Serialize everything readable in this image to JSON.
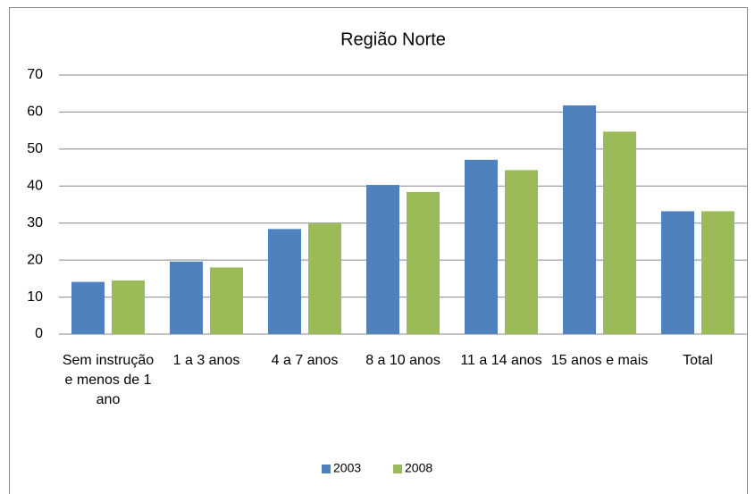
{
  "chart_data": {
    "type": "bar",
    "title": "Região Norte",
    "categories": [
      "Sem instrução e menos de 1 ano",
      "1 a 3 anos",
      "4 a 7 anos",
      "8 a 10 anos",
      "11 a 14 anos",
      "15 anos e mais",
      "Total"
    ],
    "series": [
      {
        "name": "2003",
        "color": "#4f81bd",
        "values": [
          14.1,
          19.6,
          28.4,
          40.3,
          47.1,
          61.8,
          33.2
        ]
      },
      {
        "name": "2008",
        "color": "#9bbb59",
        "values": [
          14.5,
          18.0,
          29.9,
          38.4,
          44.3,
          54.7,
          33.2
        ]
      }
    ],
    "ylim": [
      0,
      70
    ],
    "yticks": [
      0,
      10,
      20,
      30,
      40,
      50,
      60,
      70
    ],
    "grid": true,
    "legend": "bottom"
  }
}
